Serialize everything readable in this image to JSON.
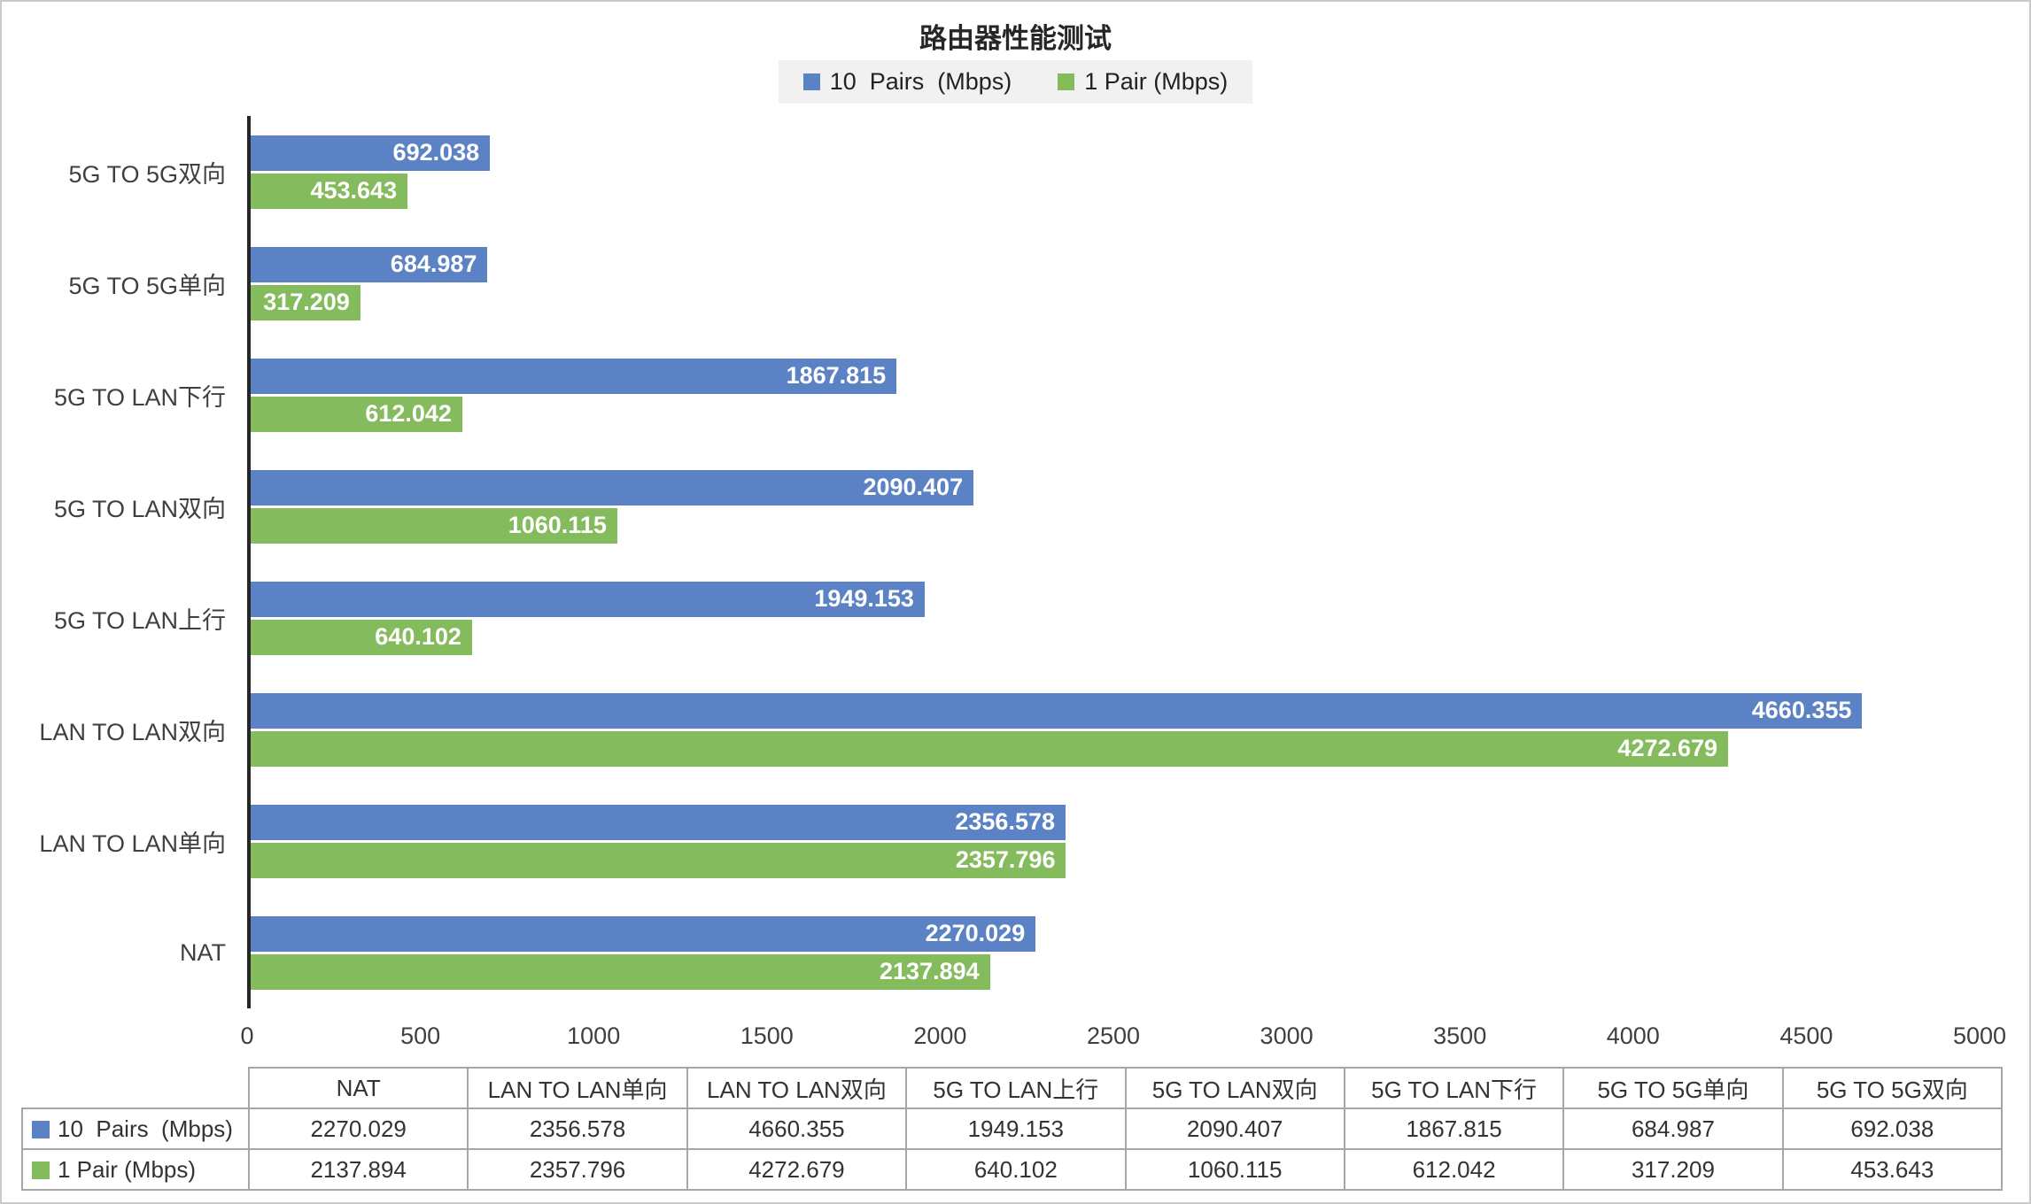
{
  "title": "路由器性能测试",
  "legend": {
    "position": "top",
    "background": "#f1f1f1",
    "items": [
      {
        "label": "10  Pairs  (Mbps)",
        "color": "#5B82C4"
      },
      {
        "label": "1 Pair (Mbps)",
        "color": "#84BB5D"
      }
    ]
  },
  "chart_data": {
    "type": "bar",
    "orientation": "horizontal",
    "title": "路由器性能测试",
    "categories": [
      "NAT",
      "LAN TO LAN单向",
      "LAN TO LAN双向",
      "5G TO LAN上行",
      "5G TO LAN双向",
      "5G TO LAN下行",
      "5G TO 5G单向",
      "5G TO 5G双向"
    ],
    "category_order_top_to_bottom": [
      "5G TO 5G双向",
      "5G TO 5G单向",
      "5G TO LAN下行",
      "5G TO LAN双向",
      "5G TO LAN上行",
      "LAN TO LAN双向",
      "LAN TO LAN单向",
      "NAT"
    ],
    "series": [
      {
        "name": "10  Pairs  (Mbps)",
        "color": "#5B82C4",
        "values": [
          2270.029,
          2356.578,
          4660.355,
          1949.153,
          2090.407,
          1867.815,
          684.987,
          692.038
        ]
      },
      {
        "name": "1 Pair (Mbps)",
        "color": "#84BB5D",
        "values": [
          2137.894,
          2357.796,
          4272.679,
          640.102,
          1060.115,
          612.042,
          317.209,
          453.643
        ]
      }
    ],
    "xlabel": "",
    "ylabel": "",
    "xlim": [
      0,
      5000
    ],
    "x_ticks": [
      0,
      500,
      1000,
      1500,
      2000,
      2500,
      3000,
      3500,
      4000,
      4500,
      5000
    ],
    "grid": false,
    "legend_position": "top",
    "data_labels": {
      "position": "inside-end",
      "color": "#FFFFFF",
      "bold": true,
      "decimals": 3
    }
  },
  "table": {
    "corner_cell": "",
    "columns_follow": "chart_data.categories",
    "rows_follow": "chart_data.series",
    "value_decimals": 3
  },
  "colors": {
    "series_blue": "#5B82C4",
    "series_green": "#84BB5D",
    "axis_line": "#262626",
    "tick_text": "#3f3f3f",
    "table_border": "#a6a6a6",
    "legend_background": "#f1f1f1",
    "canvas_border": "#c9c9c9"
  }
}
